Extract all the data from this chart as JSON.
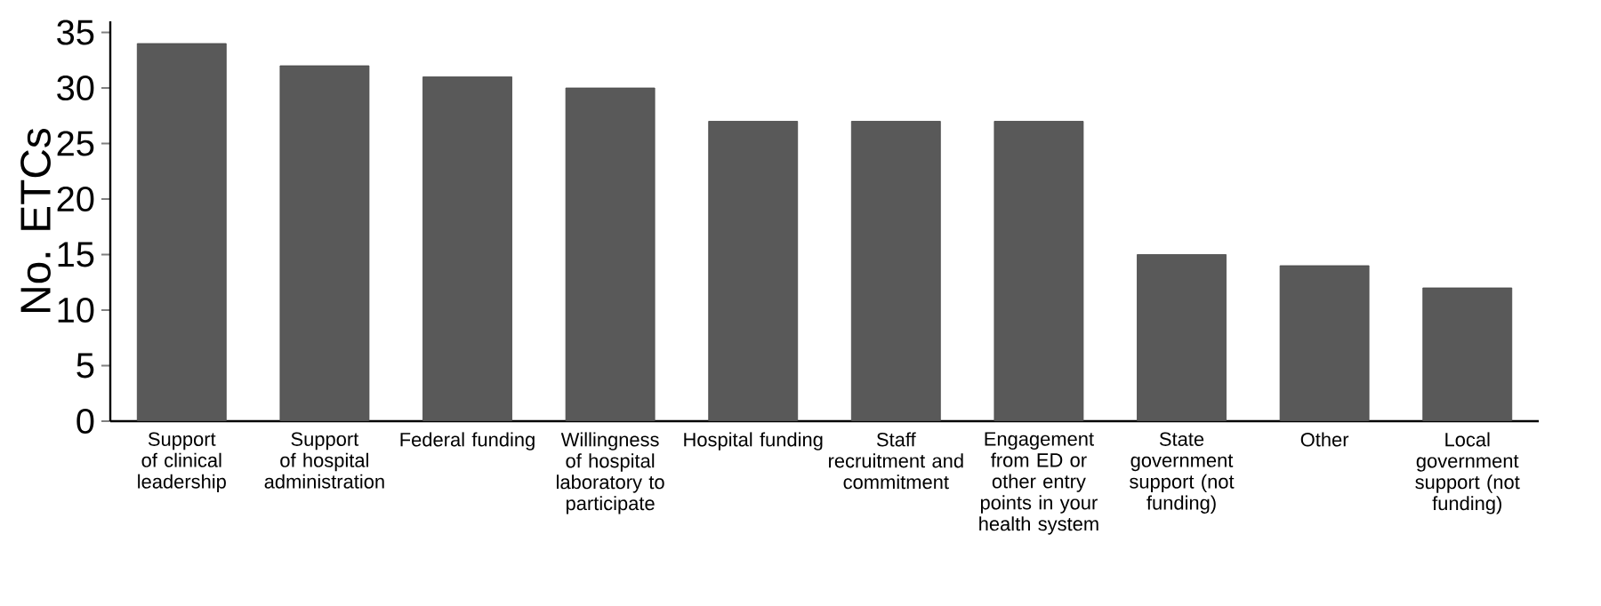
{
  "chart_data": {
    "type": "bar",
    "ylabel": "No. ETCs",
    "categories": [
      "Support of clinical leadership",
      "Support of hospital administration",
      "Federal funding",
      "Willingness of hospital laboratory to participate",
      "Hospital funding",
      "Staff recruitment and commitment",
      "Engagement from ED or other entry points in your health system",
      "State government support (not funding)",
      "Other",
      "Local government support (not funding)"
    ],
    "values": [
      34,
      32,
      31,
      30,
      27,
      27,
      27,
      15,
      14,
      12
    ],
    "color": "#595959",
    "ylim": [
      0,
      36
    ],
    "yticks": [
      0,
      5,
      10,
      15,
      20,
      25,
      30,
      35
    ]
  }
}
